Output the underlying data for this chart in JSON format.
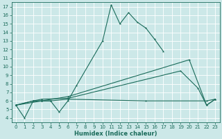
{
  "title": "",
  "xlabel": "Humidex (Indice chaleur)",
  "bg_color": "#cce8e8",
  "grid_color": "#ffffff",
  "line_color": "#1a6b5a",
  "xlim": [
    -0.5,
    23.5
  ],
  "ylim": [
    3.5,
    17.5
  ],
  "xticks": [
    0,
    1,
    2,
    3,
    4,
    5,
    6,
    7,
    8,
    9,
    10,
    11,
    12,
    13,
    14,
    15,
    16,
    17,
    18,
    19,
    20,
    21,
    22,
    23
  ],
  "yticks": [
    4,
    5,
    6,
    7,
    8,
    9,
    10,
    11,
    12,
    13,
    14,
    15,
    16,
    17
  ],
  "line1_x": [
    0,
    1,
    2,
    3,
    4,
    5,
    6,
    7,
    10,
    11,
    12,
    13,
    14,
    15,
    16,
    17
  ],
  "line1_y": [
    5.5,
    4.0,
    6.0,
    6.0,
    6.0,
    4.7,
    6.0,
    7.8,
    13.0,
    17.2,
    15.0,
    16.3,
    15.2,
    14.5,
    13.2,
    11.8
  ],
  "line2_x": [
    0,
    2,
    3,
    4,
    6,
    15,
    22,
    23
  ],
  "line2_y": [
    5.5,
    6.0,
    6.0,
    6.0,
    6.2,
    6.0,
    6.0,
    6.2
  ],
  "line3_x": [
    0,
    2,
    3,
    6,
    19,
    21,
    22,
    23
  ],
  "line3_y": [
    5.5,
    6.0,
    6.2,
    6.3,
    9.5,
    7.5,
    5.5,
    6.2
  ],
  "line4_x": [
    0,
    3,
    6,
    20,
    22,
    23
  ],
  "line4_y": [
    5.5,
    6.0,
    6.5,
    10.8,
    5.5,
    6.2
  ],
  "tick_fontsize": 5.0,
  "xlabel_fontsize": 6.0,
  "linewidth": 0.8,
  "markersize": 2.5
}
